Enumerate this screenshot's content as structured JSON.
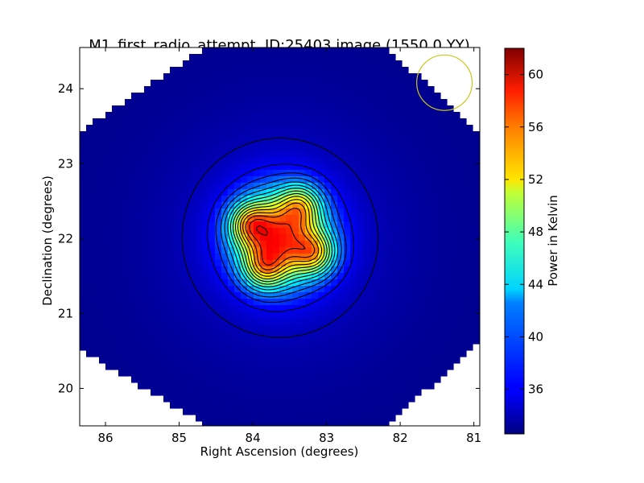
{
  "chart_data": {
    "type": "heatmap",
    "title": "M1_first_radio_attempt, ID:25403 image (1550.0,YY)",
    "xlabel": "Right Ascension (degrees)",
    "ylabel": "Declination (degrees)",
    "xlim": [
      86.35,
      80.92
    ],
    "ylim": [
      19.5,
      24.55
    ],
    "x_reversed": true,
    "x_ticks": [
      86,
      85,
      84,
      83,
      82,
      81
    ],
    "y_ticks": [
      20,
      21,
      22,
      23,
      24
    ],
    "colormap": "jet",
    "colorbar": {
      "label": "Power in Kelvin",
      "range": [
        32.6,
        62.0
      ],
      "ticks": [
        36,
        40,
        44,
        48,
        52,
        56,
        60
      ]
    },
    "field_background_value": 33,
    "blanked_corners": "white",
    "source": {
      "center": [
        83.63,
        22.01
      ],
      "peak_value": 62,
      "lobes": [
        {
          "ra": 84.05,
          "dec": 22.2,
          "value": 61
        },
        {
          "ra": 83.35,
          "dec": 22.45,
          "value": 60
        },
        {
          "ra": 83.15,
          "dec": 21.8,
          "value": 61
        },
        {
          "ra": 83.85,
          "dec": 21.6,
          "value": 60
        }
      ]
    },
    "contour_color": "#000000",
    "beam_circle": {
      "ra": 81.4,
      "dec": 24.08,
      "radius_deg": 0.37,
      "color": "#c8c81e"
    }
  }
}
